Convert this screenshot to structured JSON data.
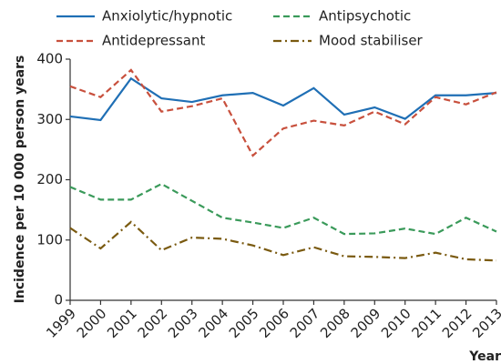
{
  "chart_data": {
    "type": "line",
    "ylabel": "Incidence per 10 000 person years",
    "xlabel": "Year",
    "x": [
      1999,
      2000,
      2001,
      2002,
      2003,
      2004,
      2005,
      2006,
      2007,
      2008,
      2009,
      2010,
      2011,
      2012,
      2013
    ],
    "xlim": [
      1999,
      2013
    ],
    "xticks": [
      1999,
      2000,
      2001,
      2002,
      2003,
      2004,
      2005,
      2006,
      2007,
      2008,
      2009,
      2010,
      2011,
      2012,
      2013
    ],
    "ylim": [
      0,
      400
    ],
    "yticks": [
      0,
      100,
      200,
      300,
      400
    ],
    "grid": false,
    "legend": "top",
    "series": [
      {
        "name": "Anxiolytic/hypnotic",
        "color": "#1f6fb5",
        "style": "solid",
        "values": [
          305,
          299,
          368,
          335,
          329,
          340,
          344,
          323,
          352,
          308,
          320,
          301,
          340,
          340,
          344
        ]
      },
      {
        "name": "Antipsychotic",
        "color": "#3a9a5a",
        "style": "dashed",
        "values": [
          188,
          167,
          167,
          193,
          165,
          137,
          129,
          120,
          137,
          110,
          111,
          119,
          110,
          137,
          114
        ]
      },
      {
        "name": "Antidepressant",
        "color": "#c8503d",
        "style": "dashed",
        "values": [
          355,
          337,
          382,
          313,
          322,
          335,
          240,
          285,
          298,
          290,
          313,
          292,
          337,
          325,
          345
        ]
      },
      {
        "name": "Mood stabiliser",
        "color": "#7a5a10",
        "style": "dashdot",
        "values": [
          120,
          86,
          130,
          83,
          104,
          102,
          91,
          75,
          88,
          73,
          72,
          70,
          79,
          68,
          66
        ]
      }
    ]
  }
}
